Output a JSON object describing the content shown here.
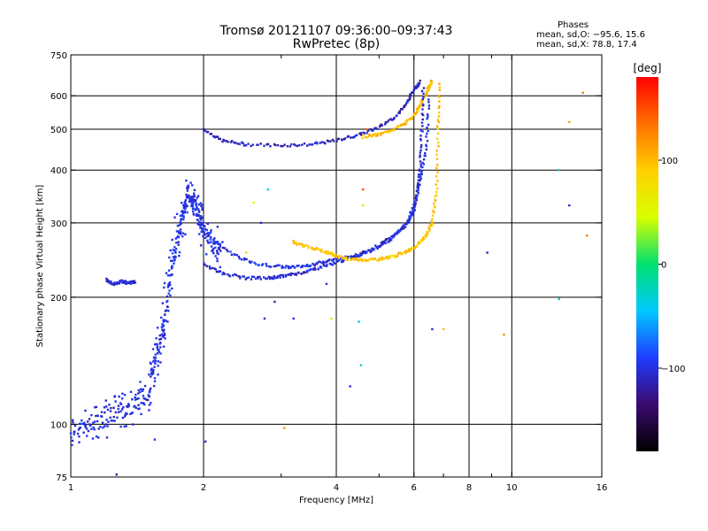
{
  "header": {
    "title": "Tromsø 20121107 09:36:00–09:37:43",
    "subtitle": "RwPretec (8p)"
  },
  "phases": {
    "heading": "Phases",
    "line_o": "mean, sd,O:  −95.6, 15.6",
    "line_x": "mean, sd,X:  78.8, 17.4"
  },
  "colorbar": {
    "label": "[deg]",
    "ticks": [
      {
        "value": 100,
        "label": "100"
      },
      {
        "value": 0,
        "label": "0"
      },
      {
        "value": -100,
        "label": "−100"
      }
    ],
    "range": [
      -180,
      180
    ],
    "colors": [
      "#000000",
      "#3b0a6e",
      "#1f3cff",
      "#00c8ff",
      "#00e070",
      "#d8ff00",
      "#ffd000",
      "#ff7000",
      "#ff0000"
    ]
  },
  "chart_data": {
    "type": "scatter",
    "title": "Tromsø 20121107 09:36:00–09:37:43",
    "subtitle": "RwPretec (8p)",
    "xlabel": "Frequency [MHz]",
    "ylabel": "Stationary phase Virtual Height [km]",
    "x_scale": "log",
    "y_scale": "log",
    "xlim": [
      1,
      16
    ],
    "ylim": [
      75,
      750
    ],
    "grid": true,
    "x_ticks": [
      {
        "value": 1,
        "label": "1"
      },
      {
        "value": 2,
        "label": "2"
      },
      {
        "value": 4,
        "label": "4"
      },
      {
        "value": 6,
        "label": "6"
      },
      {
        "value": 8,
        "label": "8"
      },
      {
        "value": 10,
        "label": "10"
      },
      {
        "value": 16,
        "label": "16"
      }
    ],
    "x_minor": [
      3,
      5,
      7,
      9
    ],
    "x_gridlines": [
      2,
      4,
      6,
      8,
      10
    ],
    "y_ticks": [
      {
        "value": 75,
        "label": "75"
      },
      {
        "value": 100,
        "label": "100"
      },
      {
        "value": 200,
        "label": "200"
      },
      {
        "value": 300,
        "label": "300"
      },
      {
        "value": 400,
        "label": "400"
      },
      {
        "value": 500,
        "label": "500"
      },
      {
        "value": 600,
        "label": "600"
      },
      {
        "value": 750,
        "label": "750"
      }
    ],
    "y_gridlines": [
      100,
      200,
      300,
      400,
      500,
      600
    ],
    "point_color": "phase [deg]",
    "traces": [
      {
        "x": [
          2.0,
          2.2,
          2.5,
          3.0,
          3.5,
          4.0,
          4.5,
          5.0,
          5.5,
          5.8,
          6.0,
          6.2
        ],
        "y": [
          500,
          470,
          460,
          458,
          460,
          470,
          485,
          505,
          540,
          580,
          620,
          650
        ],
        "phase": -110
      },
      {
        "x": [
          4.6,
          5.0,
          5.4,
          5.8,
          6.1,
          6.3,
          6.5,
          6.6
        ],
        "y": [
          480,
          485,
          500,
          520,
          550,
          590,
          630,
          650
        ],
        "phase": 100
      },
      {
        "x": [
          2.0,
          2.2,
          2.5,
          2.8,
          3.0,
          3.3,
          3.6,
          4.0,
          4.5,
          5.0,
          5.4,
          5.8,
          6.0,
          6.1,
          6.2,
          6.25,
          6.3
        ],
        "y": [
          240,
          228,
          222,
          222,
          224,
          228,
          234,
          242,
          252,
          265,
          280,
          300,
          320,
          350,
          400,
          500,
          640
        ],
        "phase": -105
      },
      {
        "x": [
          2.0,
          2.3,
          2.6,
          3.0,
          3.3,
          3.6,
          3.9,
          4.2,
          4.5,
          5.0,
          5.4,
          5.8,
          6.0,
          6.2,
          6.4,
          6.5
        ],
        "y": [
          285,
          255,
          240,
          236,
          236,
          240,
          245,
          248,
          252,
          262,
          278,
          300,
          330,
          380,
          460,
          600
        ],
        "phase": -100
      },
      {
        "x": [
          3.2,
          3.5,
          3.8,
          4.0,
          4.3,
          4.6,
          5.0,
          5.4,
          5.8,
          6.1,
          6.4,
          6.6,
          6.75,
          6.8,
          6.85
        ],
        "y": [
          270,
          262,
          256,
          250,
          246,
          245,
          246,
          250,
          257,
          266,
          280,
          300,
          360,
          500,
          650
        ],
        "phase": 95
      },
      {
        "x": [
          1.0,
          1.1,
          1.2,
          1.3,
          1.4,
          1.5,
          1.55,
          1.6,
          1.65,
          1.7,
          1.75,
          1.8,
          1.85,
          1.9,
          1.95,
          2.0,
          2.1,
          2.2
        ],
        "y": [
          95,
          100,
          103,
          108,
          110,
          120,
          140,
          160,
          190,
          240,
          280,
          320,
          360,
          340,
          310,
          290,
          270,
          255
        ],
        "phase": -100
      },
      {
        "x": [
          1.2,
          1.25,
          1.3,
          1.35,
          1.4
        ],
        "y": [
          220,
          215,
          218,
          216,
          218
        ],
        "phase": -105
      }
    ],
    "scatter_points": [
      {
        "x": 1.02,
        "y": 96,
        "phase": -110
      },
      {
        "x": 1.27,
        "y": 76,
        "phase": -120
      },
      {
        "x": 1.55,
        "y": 92,
        "phase": -95
      },
      {
        "x": 2.02,
        "y": 91,
        "phase": -105
      },
      {
        "x": 3.05,
        "y": 98,
        "phase": 120
      },
      {
        "x": 4.3,
        "y": 123,
        "phase": -100
      },
      {
        "x": 4.55,
        "y": 138,
        "phase": -30
      },
      {
        "x": 4.5,
        "y": 175,
        "phase": -30
      },
      {
        "x": 3.9,
        "y": 178,
        "phase": 40
      },
      {
        "x": 3.2,
        "y": 178,
        "phase": -100
      },
      {
        "x": 2.75,
        "y": 178,
        "phase": -105
      },
      {
        "x": 2.9,
        "y": 195,
        "phase": -110
      },
      {
        "x": 6.6,
        "y": 168,
        "phase": -105
      },
      {
        "x": 7.0,
        "y": 168,
        "phase": 100
      },
      {
        "x": 8.8,
        "y": 255,
        "phase": -110
      },
      {
        "x": 9.6,
        "y": 163,
        "phase": 120
      },
      {
        "x": 12.8,
        "y": 198,
        "phase": -30
      },
      {
        "x": 12.8,
        "y": 400,
        "phase": -30
      },
      {
        "x": 13.5,
        "y": 520,
        "phase": 110
      },
      {
        "x": 13.5,
        "y": 330,
        "phase": -105
      },
      {
        "x": 14.5,
        "y": 610,
        "phase": 130
      },
      {
        "x": 14.8,
        "y": 280,
        "phase": 130
      },
      {
        "x": 2.5,
        "y": 255,
        "phase": 80
      },
      {
        "x": 2.7,
        "y": 300,
        "phase": -105
      },
      {
        "x": 3.2,
        "y": 272,
        "phase": 110
      },
      {
        "x": 3.8,
        "y": 215,
        "phase": -100
      },
      {
        "x": 4.6,
        "y": 360,
        "phase": 150
      },
      {
        "x": 4.6,
        "y": 330,
        "phase": 40
      },
      {
        "x": 2.6,
        "y": 335,
        "phase": 50
      },
      {
        "x": 2.8,
        "y": 360,
        "phase": -30
      },
      {
        "x": 4.7,
        "y": 500,
        "phase": 140
      }
    ]
  }
}
